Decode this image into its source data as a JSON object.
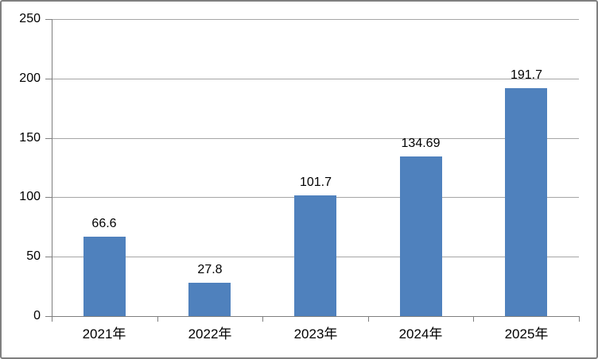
{
  "chart_data": {
    "type": "bar",
    "title": "",
    "xlabel": "",
    "ylabel": "",
    "categories": [
      "2021年",
      "2022年",
      "2023年",
      "2024年",
      "2025年"
    ],
    "values": [
      66.6,
      27.8,
      101.7,
      134.69,
      191.7
    ],
    "data_labels": [
      "66.6",
      "27.8",
      "101.7",
      "134.69",
      "191.7"
    ],
    "ylim": [
      0,
      250
    ],
    "yticks": [
      0,
      50,
      100,
      150,
      200,
      250
    ],
    "ytick_labels": [
      "0",
      "50",
      "100",
      "150",
      "200",
      "250"
    ],
    "grid": true,
    "legend_position": "none",
    "colors": {
      "bar_fill": "#4F81BD",
      "gridline": "#A6A6A6",
      "axis": "#7F7F7F",
      "text": "#000000",
      "frame_border": "#7F7F7F",
      "background": "#FFFFFF"
    }
  }
}
